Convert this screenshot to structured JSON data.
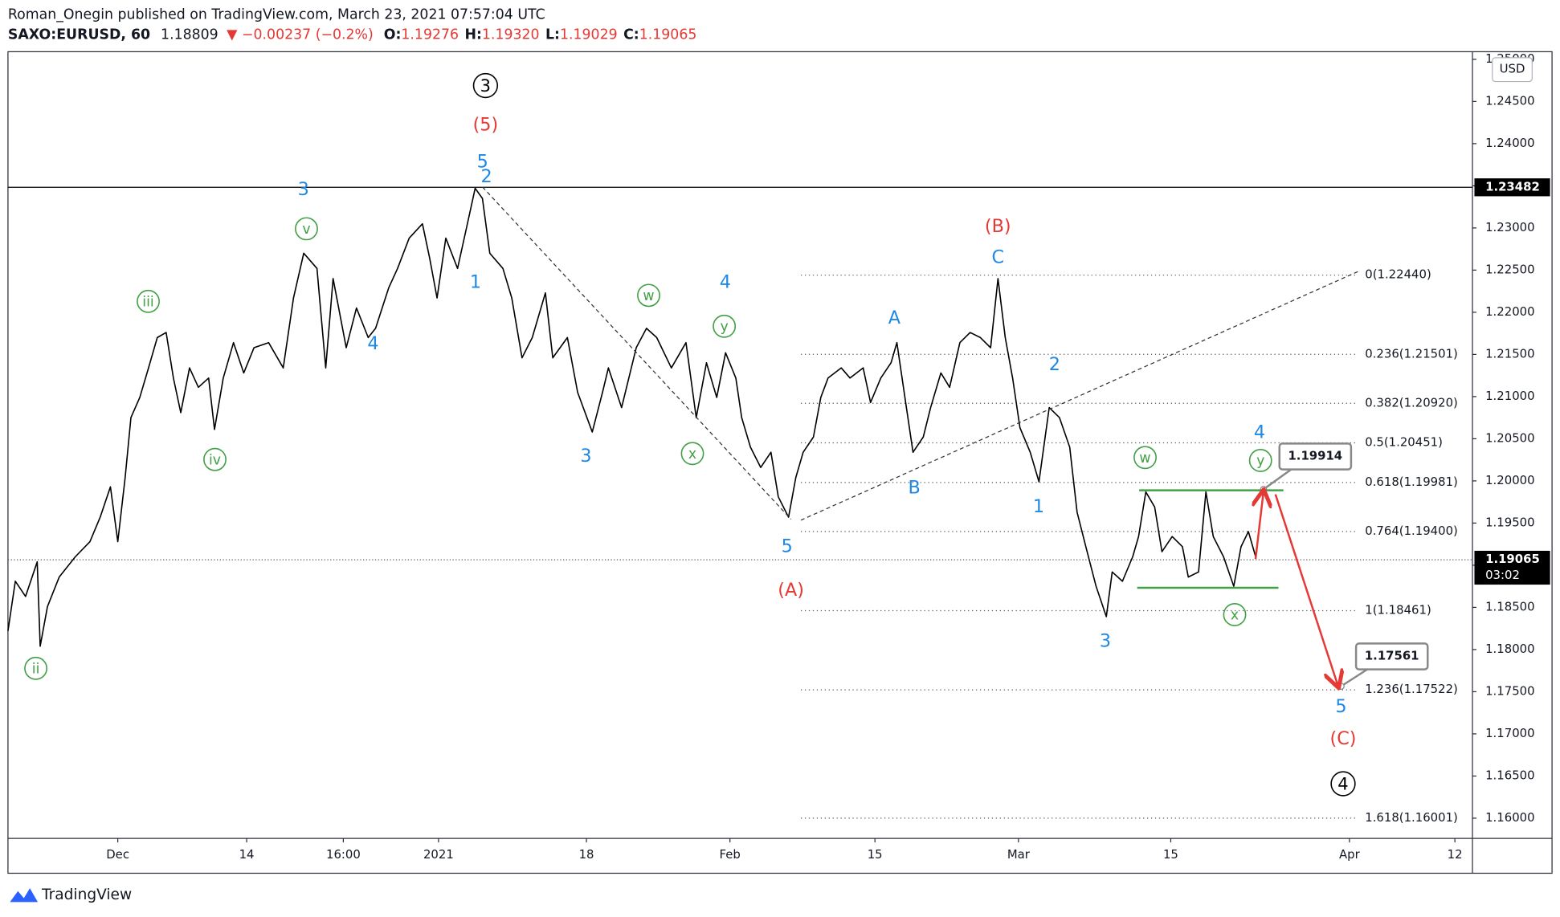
{
  "header": {
    "title": "Roman_Onegin published on TradingView.com, March 23, 2021 07:57:04 UTC",
    "symbol": "SAXO:EURUSD, 60",
    "last": "1.18809",
    "change": "▼ −0.00237 (−0.2%)",
    "ohlc": [
      {
        "key": "O:",
        "value": "1.19276"
      },
      {
        "key": "H:",
        "value": "1.19320"
      },
      {
        "key": "L:",
        "value": "1.19029"
      },
      {
        "key": "C:",
        "value": "1.19065"
      }
    ]
  },
  "brand": "TradingView",
  "chart_data": {
    "type": "line",
    "color": "#000000",
    "currency": "USD",
    "x": [
      0.0,
      0.5,
      1.2,
      2.0,
      2.2,
      2.7,
      3.5,
      4.6,
      5.6,
      6.3,
      7.0,
      7.5,
      8.0,
      8.4,
      9.0,
      9.6,
      10.2,
      10.8,
      11.3,
      11.8,
      12.4,
      13.0,
      13.7,
      14.1,
      14.7,
      15.4,
      16.1,
      16.8,
      17.8,
      18.8,
      19.5,
      20.2,
      21.1,
      21.7,
      22.2,
      23.1,
      23.8,
      24.6,
      25.1,
      26.0,
      26.6,
      27.4,
      28.3,
      28.8,
      29.3,
      29.9,
      30.7,
      31.3,
      31.9,
      32.4,
      32.9,
      33.8,
      34.4,
      35.1,
      35.8,
      36.7,
      37.2,
      38.2,
      38.9,
      39.9,
      40.6,
      41.0,
      41.9,
      42.9,
      43.6,
      44.3,
      45.3,
      46.3,
      47.0,
      47.7,
      48.4,
      49.0,
      49.7,
      50.1,
      50.7,
      51.4,
      52.1,
      52.6,
      53.3,
      53.8,
      54.3,
      55.0,
      55.5,
      56.0,
      56.9,
      57.5,
      58.4,
      58.9,
      59.6,
      60.3,
      60.7,
      61.3,
      61.8,
      62.5,
      63.0,
      63.7,
      64.3,
      65.0,
      65.7,
      66.4,
      67.1,
      67.6,
      68.1,
      68.6,
      69.1,
      69.8,
      70.4,
      71.1,
      71.8,
      72.5,
      73.0,
      73.6,
      74.3,
      75.0,
      75.4,
      76.1,
      76.8,
      77.2,
      77.7,
      78.3,
      78.8,
      79.5,
      80.2,
      80.6,
      81.3,
      81.8,
      82.3,
      83.0,
      83.7,
      84.2,
      84.7,
      85.2
    ],
    "values": [
      1.1822,
      1.1881,
      1.1863,
      1.1904,
      1.1804,
      1.1851,
      1.1886,
      1.191,
      1.1928,
      1.1957,
      1.1993,
      1.1928,
      1.2004,
      1.2075,
      1.2099,
      1.2134,
      1.217,
      1.2176,
      1.2122,
      1.2081,
      1.2134,
      1.2111,
      1.2122,
      1.2061,
      1.2122,
      1.2164,
      1.2128,
      1.2158,
      1.2164,
      1.2134,
      1.2217,
      1.227,
      1.2252,
      1.2134,
      1.224,
      1.2158,
      1.2205,
      1.217,
      1.2181,
      1.2229,
      1.2252,
      1.2288,
      1.2305,
      1.2264,
      1.2217,
      1.2288,
      1.2252,
      1.2299,
      1.2347,
      1.2335,
      1.227,
      1.2252,
      1.2217,
      1.2146,
      1.217,
      1.2223,
      1.2146,
      1.217,
      1.2105,
      1.2058,
      1.2105,
      1.2134,
      1.2087,
      1.2158,
      1.2181,
      1.217,
      1.2134,
      1.2164,
      1.2075,
      1.214,
      1.2099,
      1.2152,
      1.2122,
      1.2075,
      1.204,
      1.2016,
      1.2034,
      1.1981,
      1.1957,
      1.2004,
      1.2034,
      1.2052,
      1.2099,
      1.2122,
      1.2134,
      1.2122,
      1.2134,
      1.2093,
      1.2122,
      1.214,
      1.2164,
      1.2093,
      1.2034,
      1.2052,
      1.2087,
      1.2128,
      1.2111,
      1.2164,
      1.2176,
      1.217,
      1.2158,
      1.224,
      1.217,
      1.2122,
      1.2063,
      1.2034,
      1.1999,
      1.2087,
      1.2075,
      1.204,
      1.1963,
      1.1922,
      1.1875,
      1.1839,
      1.1892,
      1.1881,
      1.191,
      1.1934,
      1.1987,
      1.1969,
      1.1916,
      1.1934,
      1.1922,
      1.1886,
      1.1892,
      1.1987,
      1.1934,
      1.191,
      1.1875,
      1.1922,
      1.194,
      1.191
    ],
    "xlim": [
      0,
      100
    ],
    "xticks": [
      {
        "value": 7.5,
        "label": "Dec"
      },
      {
        "value": 16.3,
        "label": "14"
      },
      {
        "value": 22.9,
        "label": "16:00"
      },
      {
        "value": 29.4,
        "label": "2021"
      },
      {
        "value": 39.5,
        "label": "18"
      },
      {
        "value": 49.3,
        "label": "Feb"
      },
      {
        "value": 59.2,
        "label": "15"
      },
      {
        "value": 69.0,
        "label": "Mar"
      },
      {
        "value": 79.4,
        "label": "15"
      },
      {
        "value": 91.6,
        "label": "Apr"
      },
      {
        "value": 98.8,
        "label": "12"
      }
    ],
    "ylim": [
      1.1576,
      1.2509
    ],
    "yticks": [
      {
        "value": 1.16,
        "label": "1.16000"
      },
      {
        "value": 1.165,
        "label": "1.16500"
      },
      {
        "value": 1.17,
        "label": "1.17000"
      },
      {
        "value": 1.175,
        "label": "1.17500"
      },
      {
        "value": 1.18,
        "label": "1.18000"
      },
      {
        "value": 1.185,
        "label": "1.18500"
      },
      {
        "value": 1.19,
        "label": "1.19000"
      },
      {
        "value": 1.195,
        "label": "1.19500"
      },
      {
        "value": 1.2,
        "label": "1.20000"
      },
      {
        "value": 1.205,
        "label": "1.20500"
      },
      {
        "value": 1.21,
        "label": "1.21000"
      },
      {
        "value": 1.215,
        "label": "1.21500"
      },
      {
        "value": 1.22,
        "label": "1.22000"
      },
      {
        "value": 1.225,
        "label": "1.22500"
      },
      {
        "value": 1.23,
        "label": "1.23000"
      },
      {
        "value": 1.235,
        "label": "1.23500"
      },
      {
        "value": 1.24,
        "label": "1.24000"
      },
      {
        "value": 1.245,
        "label": "1.24500"
      },
      {
        "value": 1.25,
        "label": "1.25000"
      }
    ],
    "hline": {
      "value": 1.23482,
      "label": "1.23482"
    },
    "current": {
      "value": 1.19065,
      "label": "1.19065",
      "countdown": "03:02"
    },
    "fib": [
      {
        "value": 1.2244,
        "label": "0(1.22440)"
      },
      {
        "value": 1.21501,
        "label": "0.236(1.21501)"
      },
      {
        "value": 1.2092,
        "label": "0.382(1.20920)"
      },
      {
        "value": 1.20451,
        "label": "0.5(1.20451)"
      },
      {
        "value": 1.19981,
        "label": "0.618(1.19981)"
      },
      {
        "value": 1.194,
        "label": "0.764(1.19400)"
      },
      {
        "value": 1.18461,
        "label": "1(1.18461)"
      },
      {
        "value": 1.17522,
        "label": "1.236(1.17522)"
      },
      {
        "value": 1.16001,
        "label": "1.618(1.16001)"
      }
    ],
    "callouts": [
      1.19914,
      1.17561
    ],
    "annotations": [
      {
        "text": "3",
        "color": "#000000",
        "circled": true
      },
      {
        "text": "4",
        "color": "#000000",
        "circled": true
      },
      {
        "text": "(5)",
        "color": "#e53935"
      },
      {
        "text": "(A)",
        "color": "#e53935"
      },
      {
        "text": "(B)",
        "color": "#e53935"
      },
      {
        "text": "(C)",
        "color": "#e53935"
      },
      {
        "text": "5",
        "color": "#1e88e5"
      },
      {
        "text": "2",
        "color": "#1e88e5"
      },
      {
        "text": "3",
        "color": "#1e88e5"
      },
      {
        "text": "1",
        "color": "#1e88e5"
      },
      {
        "text": "4",
        "color": "#1e88e5"
      },
      {
        "text": "3",
        "color": "#1e88e5"
      },
      {
        "text": "4",
        "color": "#1e88e5"
      },
      {
        "text": "5",
        "color": "#1e88e5"
      },
      {
        "text": "A",
        "color": "#1e88e5"
      },
      {
        "text": "B",
        "color": "#1e88e5"
      },
      {
        "text": "C",
        "color": "#1e88e5"
      },
      {
        "text": "2",
        "color": "#1e88e5"
      },
      {
        "text": "1",
        "color": "#1e88e5"
      },
      {
        "text": "3",
        "color": "#1e88e5"
      },
      {
        "text": "4",
        "color": "#1e88e5"
      },
      {
        "text": "5",
        "color": "#1e88e5"
      },
      {
        "text": "ii",
        "color": "#43a047",
        "circled": true
      },
      {
        "text": "iii",
        "color": "#43a047",
        "circled": true
      },
      {
        "text": "iv",
        "color": "#43a047",
        "circled": true
      },
      {
        "text": "v",
        "color": "#43a047",
        "circled": true
      },
      {
        "text": "w",
        "color": "#43a047",
        "circled": true
      },
      {
        "text": "x",
        "color": "#43a047",
        "circled": true
      },
      {
        "text": "y",
        "color": "#43a047",
        "circled": true
      },
      {
        "text": "w",
        "color": "#43a047",
        "circled": true
      },
      {
        "text": "x",
        "color": "#43a047",
        "circled": true
      },
      {
        "text": "y",
        "color": "#43a047",
        "circled": true
      }
    ]
  }
}
